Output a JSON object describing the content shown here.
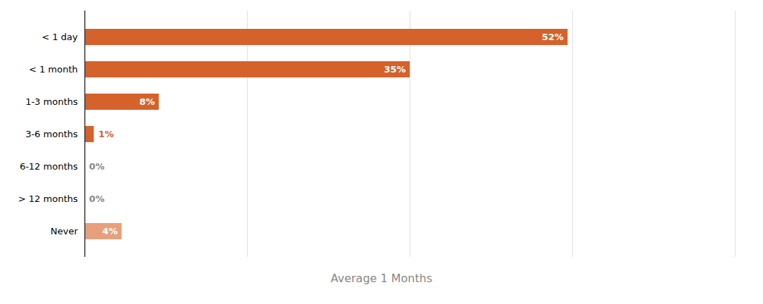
{
  "chart_data": {
    "type": "bar",
    "orientation": "horizontal",
    "title": "Average 1 Months",
    "categories": [
      "< 1 day",
      "< 1 month",
      "1-3 months",
      "3-6 months",
      "6-12 months",
      "> 12 months",
      "Never"
    ],
    "values": [
      52,
      35,
      8,
      1,
      0,
      0,
      4
    ],
    "value_labels": [
      "52%",
      "35%",
      "8%",
      "1%",
      "0%",
      "0%",
      "4%"
    ],
    "data_labels": true,
    "colors": [
      "#d4622a",
      "#d4622a",
      "#d4622a",
      "#d4622a",
      "#cccccc",
      "#cccccc",
      "#e8a07a"
    ],
    "xlim": [
      0,
      70
    ],
    "xticks": [
      17.5,
      35,
      52.5,
      70
    ],
    "grid": true,
    "tick_labels": "y"
  }
}
